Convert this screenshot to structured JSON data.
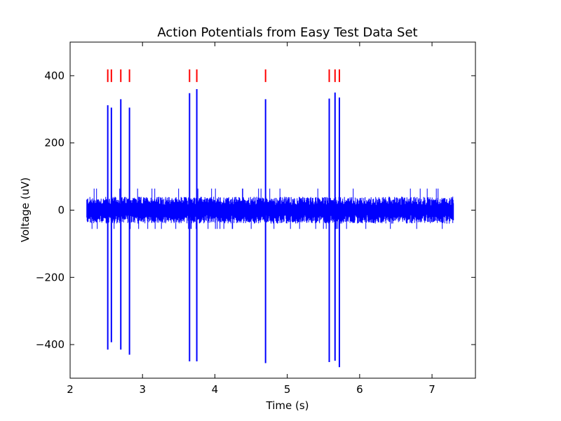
{
  "chart_data": {
    "type": "line",
    "title": "Action Potentials from Easy Test Data Set",
    "xlabel": "Time (s)",
    "ylabel": "Voltage (uV)",
    "xlim": [
      2,
      7.6
    ],
    "ylim": [
      -500,
      500
    ],
    "xticks": [
      2,
      3,
      4,
      5,
      6,
      7
    ],
    "xtick_labels": [
      "2",
      "3",
      "4",
      "5",
      "6",
      "7"
    ],
    "yticks": [
      -400,
      -200,
      0,
      200,
      400
    ],
    "ytick_labels": [
      "−400",
      "−200",
      "0",
      "200",
      "400"
    ],
    "grid": false,
    "series": [
      {
        "color": "#0000ff",
        "description": "continuous voltage trace with noise band roughly ±40 uV",
        "x_range": [
          2.23,
          7.3
        ],
        "noise_amplitude": 40,
        "spikes": [
          {
            "t": 2.52,
            "max": 312,
            "min": -415
          },
          {
            "t": 2.57,
            "max": 305,
            "min": -393
          },
          {
            "t": 2.7,
            "max": 330,
            "min": -415
          },
          {
            "t": 2.82,
            "max": 305,
            "min": -430
          },
          {
            "t": 3.65,
            "max": 348,
            "min": -450
          },
          {
            "t": 3.75,
            "max": 360,
            "min": -450
          },
          {
            "t": 4.7,
            "max": 330,
            "min": -455
          },
          {
            "t": 5.58,
            "max": 332,
            "min": -452
          },
          {
            "t": 5.66,
            "max": 350,
            "min": -448
          },
          {
            "t": 5.72,
            "max": 335,
            "min": -467
          }
        ]
      },
      {
        "color": "#ff0000",
        "description": "spike detection markers",
        "marker_y": 400,
        "x": [
          2.52,
          2.57,
          2.7,
          2.82,
          3.65,
          3.75,
          4.7,
          5.58,
          5.66,
          5.72
        ]
      }
    ]
  }
}
